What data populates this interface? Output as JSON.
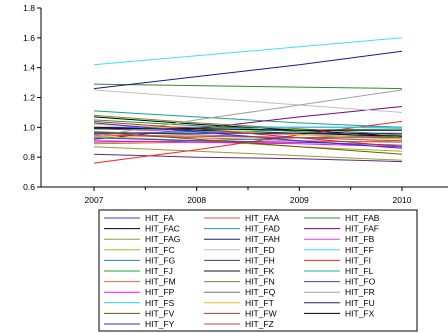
{
  "chart_data": {
    "type": "line",
    "title": "",
    "xlabel": "",
    "ylabel": "",
    "x": [
      "2007",
      "2008",
      "2009",
      "2010"
    ],
    "ylim": [
      0.6,
      1.8
    ],
    "yticks": [
      "0.6",
      "0.8",
      "1.0",
      "1.2",
      "1.4",
      "1.6",
      "1.8"
    ],
    "grid": false,
    "legend_position": "bottom",
    "series": [
      {
        "name": "HIT_FA",
        "color": "#3b3bdc",
        "values": [
          1.0,
          1.0,
          1.0,
          1.0
        ]
      },
      {
        "name": "HIT_FAA",
        "color": "#e05050",
        "values": [
          0.95,
          0.93,
          0.91,
          0.9
        ]
      },
      {
        "name": "HIT_FAB",
        "color": "#2e8b2e",
        "values": [
          1.29,
          1.28,
          1.27,
          1.26
        ]
      },
      {
        "name": "HIT_FAC",
        "color": "#000000",
        "values": [
          1.07,
          1.02,
          0.98,
          0.94
        ]
      },
      {
        "name": "HIT_FAD",
        "color": "#18a090",
        "values": [
          1.11,
          1.07,
          1.03,
          1.0
        ]
      },
      {
        "name": "HIT_FAF",
        "color": "#800080",
        "values": [
          0.92,
          0.99,
          1.07,
          1.14
        ]
      },
      {
        "name": "HIT_FAG",
        "color": "#9a9a3a",
        "values": [
          0.87,
          0.84,
          0.81,
          0.78
        ]
      },
      {
        "name": "HIT_FAH",
        "color": "#1a1a80",
        "values": [
          1.26,
          1.34,
          1.42,
          1.51
        ]
      },
      {
        "name": "HIT_FB",
        "color": "#e040e0",
        "values": [
          0.99,
          0.97,
          0.95,
          0.93
        ]
      },
      {
        "name": "HIT_FC",
        "color": "#b0b020",
        "values": [
          0.94,
          0.91,
          0.87,
          0.84
        ]
      },
      {
        "name": "HIT_FD",
        "color": "#c0c0c0",
        "values": [
          1.25,
          1.2,
          1.15,
          1.1
        ]
      },
      {
        "name": "HIT_FF",
        "color": "#40e0f0",
        "values": [
          1.42,
          1.48,
          1.54,
          1.6
        ]
      },
      {
        "name": "HIT_FG",
        "color": "#2b8c8c",
        "values": [
          0.9,
          0.91,
          0.93,
          0.95
        ]
      },
      {
        "name": "HIT_FH",
        "color": "#5a2d82",
        "values": [
          0.82,
          0.8,
          0.79,
          0.77
        ]
      },
      {
        "name": "HIT_FI",
        "color": "#ff2020",
        "values": [
          0.76,
          0.85,
          0.95,
          1.04
        ]
      },
      {
        "name": "HIT_FJ",
        "color": "#20a020",
        "values": [
          1.05,
          1.01,
          0.97,
          0.93
        ]
      },
      {
        "name": "HIT_FK",
        "color": "#101010",
        "values": [
          1.0,
          0.98,
          0.96,
          0.94
        ]
      },
      {
        "name": "HIT_FL",
        "color": "#20b0a0",
        "values": [
          0.96,
          0.97,
          0.98,
          0.99
        ]
      },
      {
        "name": "HIT_FM",
        "color": "#ff6030",
        "values": [
          0.89,
          0.9,
          0.9,
          0.91
        ]
      },
      {
        "name": "HIT_FN",
        "color": "#6b8e23",
        "values": [
          1.08,
          1.03,
          0.99,
          0.95
        ]
      },
      {
        "name": "HIT_FO",
        "color": "#4040c0",
        "values": [
          0.93,
          0.91,
          0.9,
          0.88
        ]
      },
      {
        "name": "HIT_FP",
        "color": "#ff00ff",
        "values": [
          0.91,
          0.9,
          0.89,
          0.87
        ]
      },
      {
        "name": "HIT_FQ",
        "color": "#707070",
        "values": [
          0.97,
          0.95,
          0.93,
          0.91
        ]
      },
      {
        "name": "HIT_FR",
        "color": "#a0a0a0",
        "values": [
          0.94,
          1.05,
          1.15,
          1.25
        ]
      },
      {
        "name": "HIT_FS",
        "color": "#30d0e0",
        "values": [
          0.99,
          0.99,
          1.0,
          1.0
        ]
      },
      {
        "name": "HIT_FT",
        "color": "#e0c020",
        "values": [
          1.02,
          0.99,
          0.95,
          0.92
        ]
      },
      {
        "name": "HIT_FU",
        "color": "#202070",
        "values": [
          0.96,
          0.96,
          0.96,
          0.96
        ]
      },
      {
        "name": "HIT_FV",
        "color": "#606000",
        "values": [
          0.97,
          0.92,
          0.87,
          0.82
        ]
      },
      {
        "name": "HIT_FW",
        "color": "#c03030",
        "values": [
          1.04,
          0.99,
          0.93,
          0.87
        ]
      },
      {
        "name": "HIT_FX",
        "color": "#000000",
        "values": [
          0.99,
          0.99,
          0.98,
          0.98
        ]
      },
      {
        "name": "HIT_FY",
        "color": "#3030e0",
        "values": [
          1.03,
          0.97,
          0.91,
          0.86
        ]
      },
      {
        "name": "HIT_FZ",
        "color": "#d04040",
        "values": [
          0.95,
          0.94,
          0.93,
          0.93
        ]
      }
    ]
  }
}
